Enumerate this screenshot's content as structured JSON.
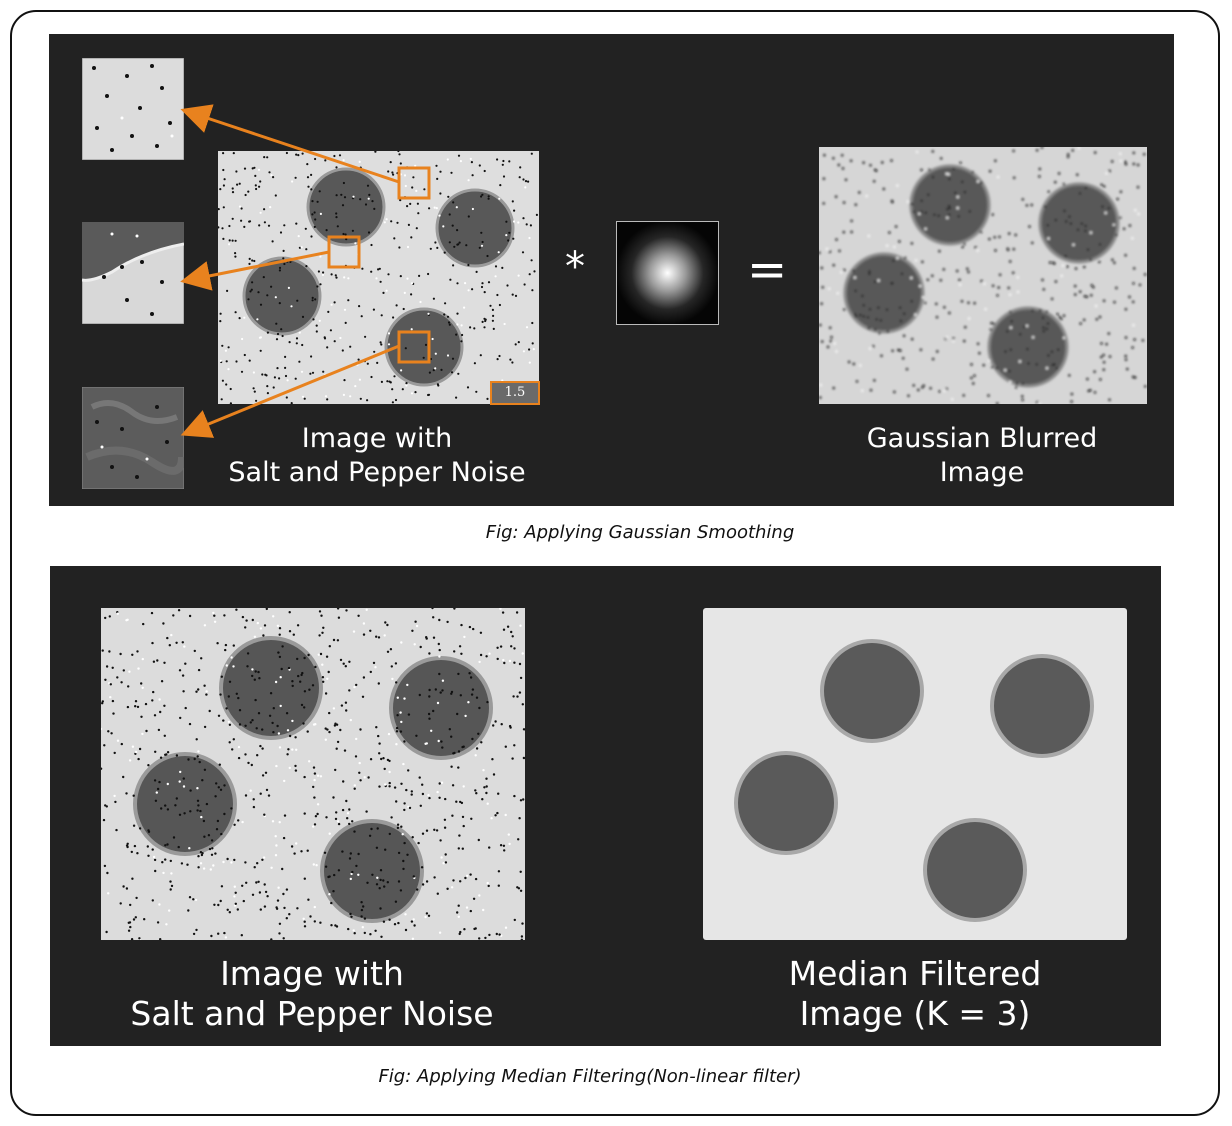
{
  "gaussian_figure": {
    "noisy_caption_line1": "Image with",
    "noisy_caption_line2": "Salt and Pepper Noise",
    "blurred_caption_line1": "Gaussian Blurred",
    "blurred_caption_line2": "Image",
    "convolution_symbol": "*",
    "equals_symbol": "=",
    "scale_badge": "1.5",
    "caption": "Fig: Applying Gaussian Smoothing"
  },
  "median_figure": {
    "noisy_caption_line1": "Image with",
    "noisy_caption_line2": "Salt and Pepper Noise",
    "filtered_caption_line1": "Median Filtered",
    "filtered_caption_line2": "Image (K = 3)",
    "caption": "Fig: Applying Median Filtering(Non-linear filter)"
  },
  "colors": {
    "panel_background": "#222222",
    "highlight_orange": "#e8821e",
    "caption_text": "#ffffff"
  }
}
